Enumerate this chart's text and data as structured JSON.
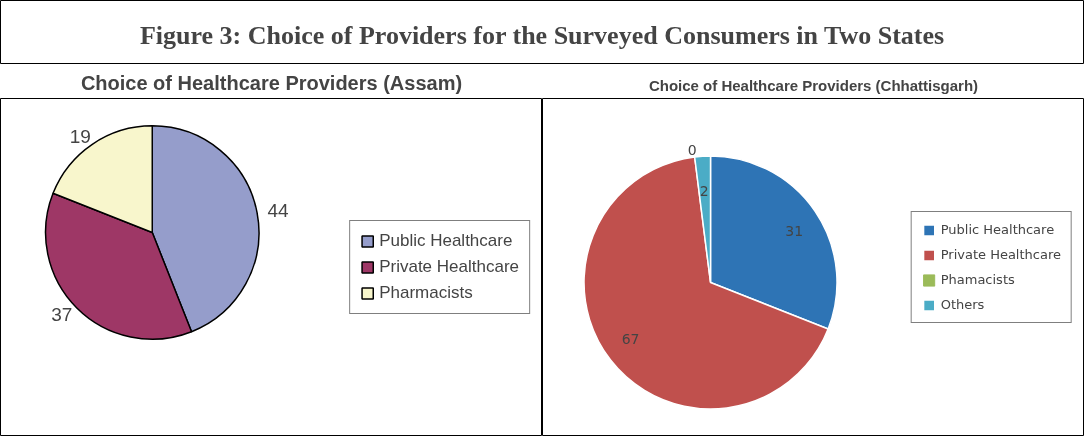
{
  "chart_data": [
    {
      "type": "other",
      "title": "Figure 3: Choice of Providers for the Surveyed Consumers in Two States"
    },
    {
      "type": "pie",
      "title": "Choice of Healthcare Providers (Assam)",
      "categories": [
        "Public Healthcare",
        "Private Healthcare",
        "Pharmacists"
      ],
      "values": [
        44,
        37,
        19
      ],
      "colors": [
        "#959dcb",
        "#9e3766",
        "#f8f6cc"
      ],
      "data_labels": true,
      "legend": "right"
    },
    {
      "type": "pie",
      "title": "Choice of Healthcare Providers (Chhattisgarh)",
      "categories": [
        "Public Healthcare",
        "Private Healthcare",
        "Phamacists",
        "Others"
      ],
      "values": [
        31,
        67,
        0,
        2
      ],
      "colors": [
        "#2e74b5",
        "#c0504d",
        "#9bbb59",
        "#4bacc6"
      ],
      "value_labels": [
        "31",
        "67",
        "0",
        "2"
      ],
      "legend": "right"
    }
  ]
}
